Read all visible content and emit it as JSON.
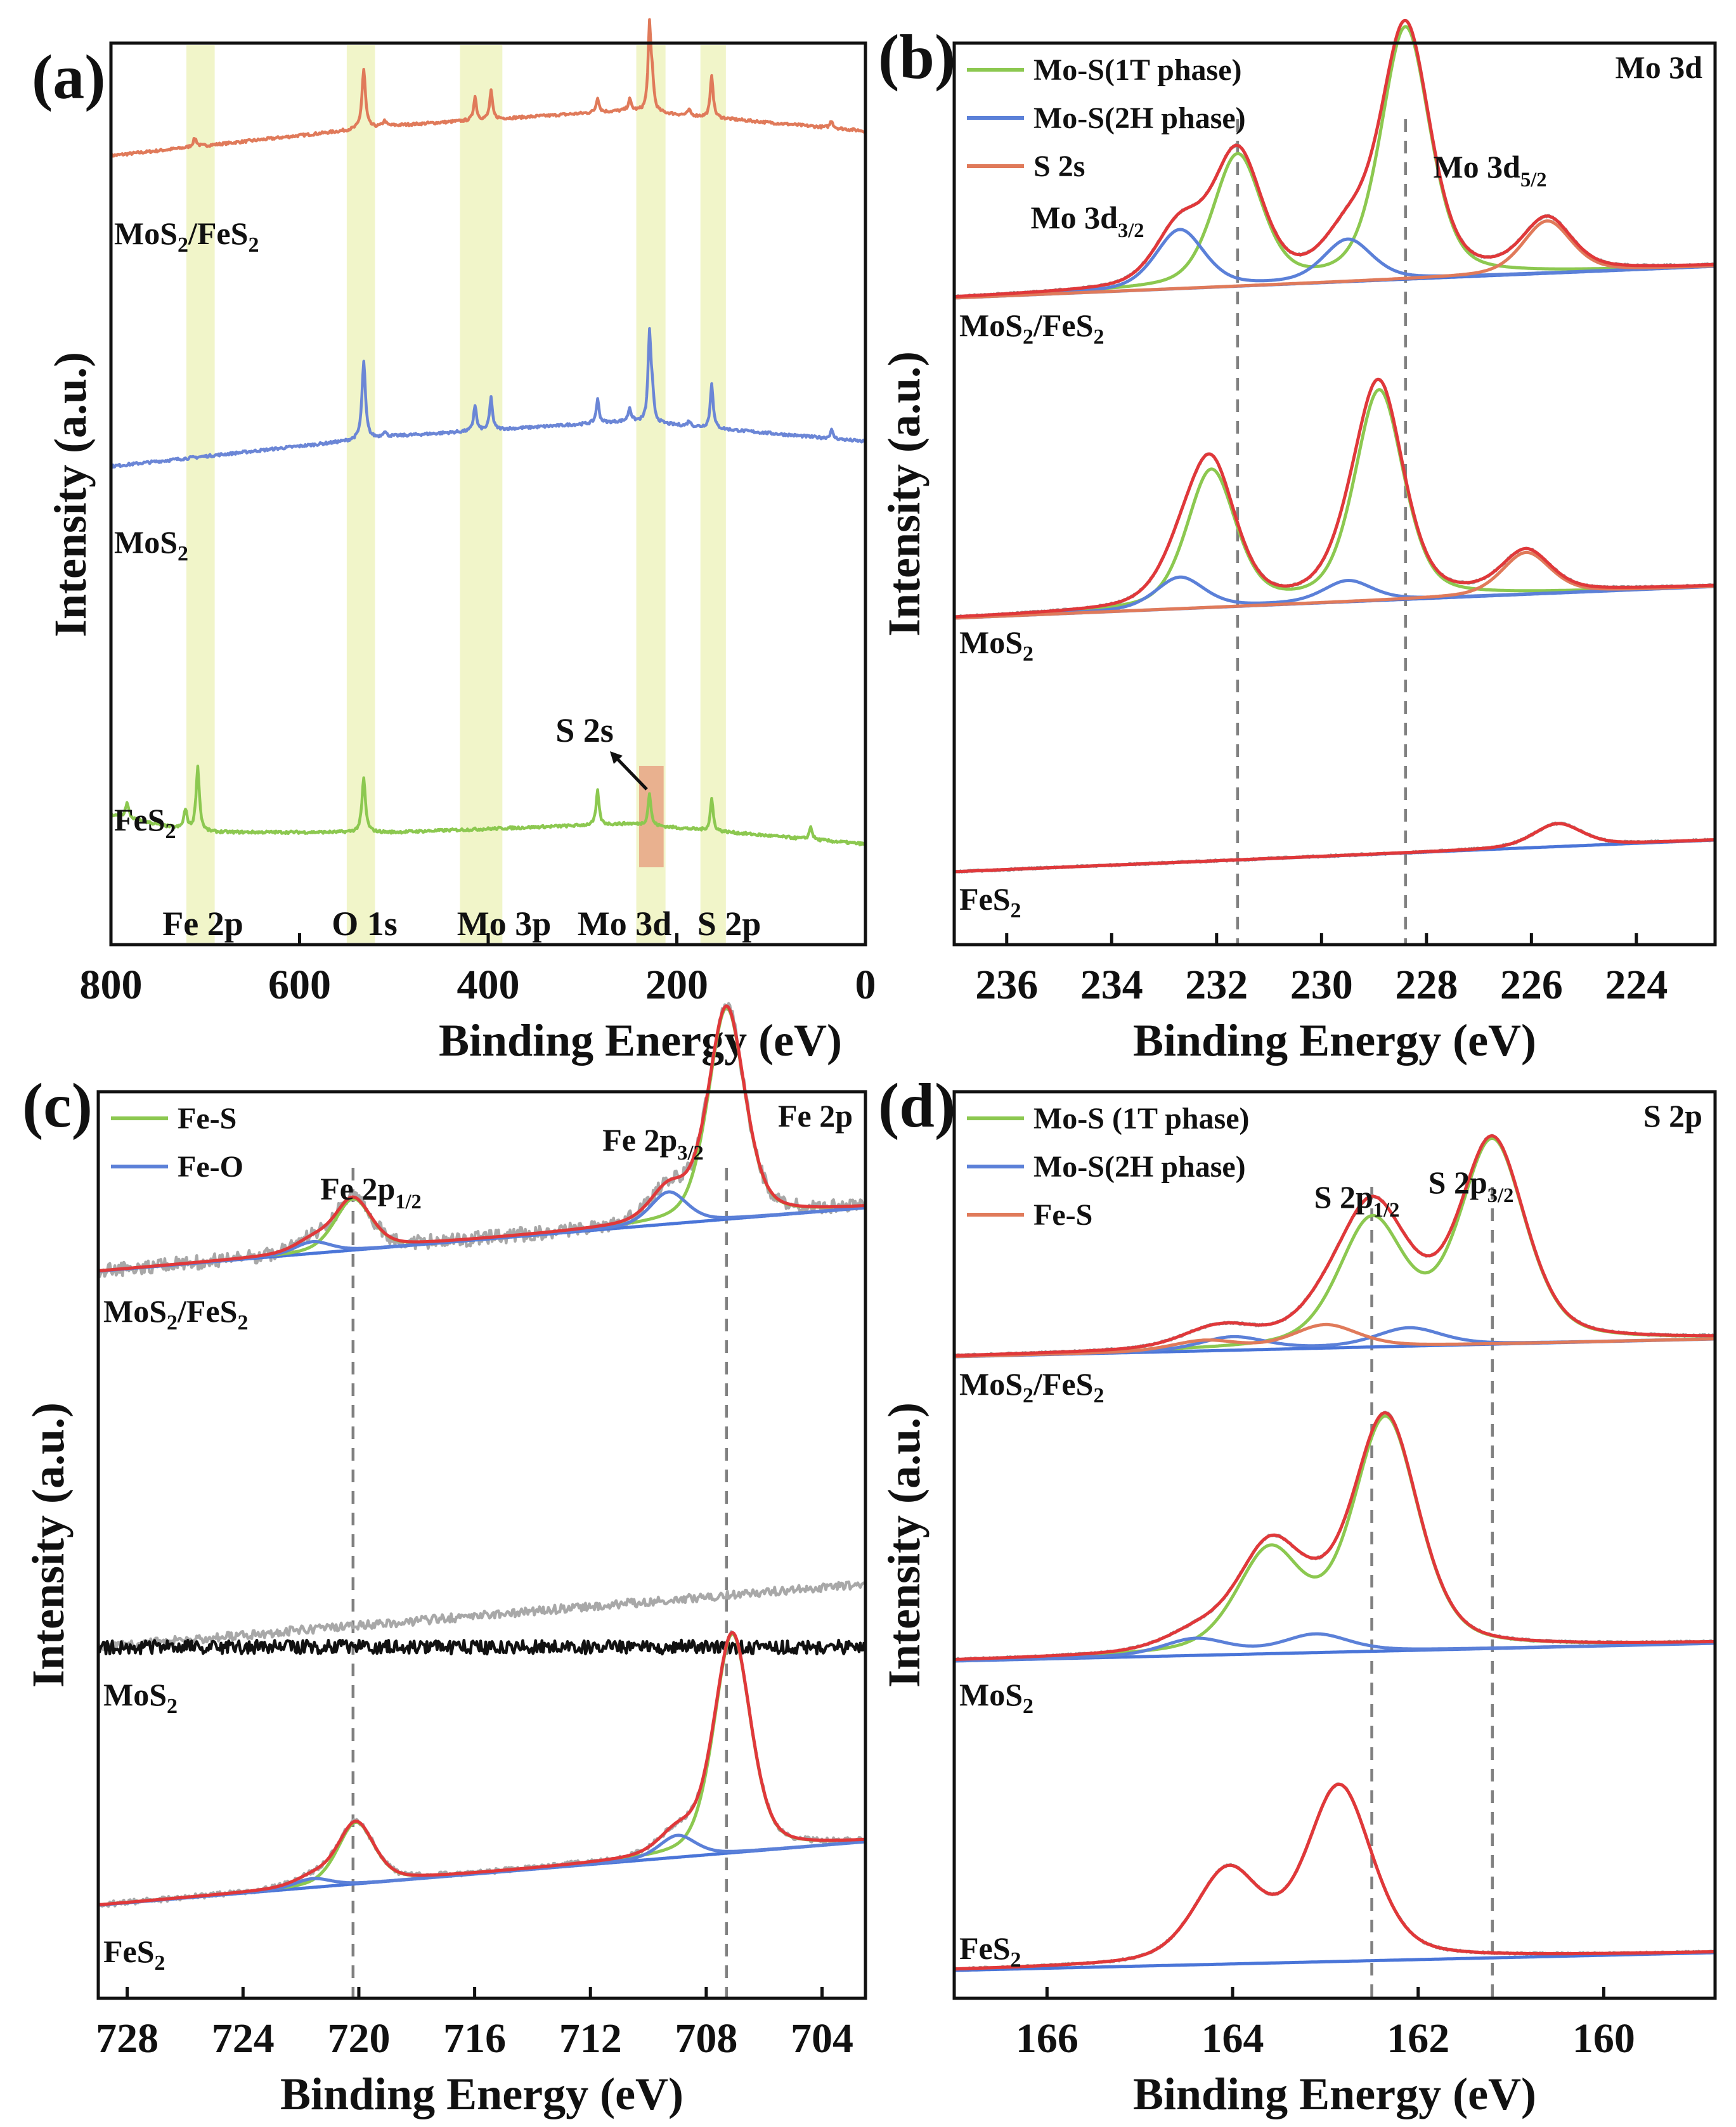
{
  "figure": {
    "description_free": true
  },
  "chart_data": [
    {
      "panel": "(a)",
      "type": "line",
      "title": "",
      "xlabel": "Binding Energy (eV)",
      "ylabel": "Intensity (a.u.)",
      "xlim": [
        800,
        0
      ],
      "x_ticks": [
        "800",
        "600",
        "400",
        "200",
        "0"
      ],
      "highlight_regions": [
        {
          "label": "Fe 2p",
          "range": [
            720,
            690
          ],
          "color": "#f1f5c9"
        },
        {
          "label": "O 1s",
          "range": [
            550,
            520
          ],
          "color": "#f1f5c9"
        },
        {
          "label": "Mo 3p",
          "range": [
            430,
            385
          ],
          "color": "#f1f5c9"
        },
        {
          "label": "Mo 3d",
          "range": [
            243,
            212
          ],
          "color": "#f1f5c9"
        },
        {
          "label": "S 2p",
          "range": [
            175,
            148
          ],
          "color": "#f1f5c9"
        }
      ],
      "annotation": {
        "text": "S 2s",
        "x": 226,
        "box_color": "#e8a080"
      },
      "series": [
        {
          "name": "MoS2/FeS2",
          "color": "#e07a5a",
          "offset": 2.0,
          "baseline": {
            "at_800": 0.32,
            "at_500": 0.6,
            "at_250": 0.74,
            "at_0": 0.55
          },
          "peaks": [
            [
              711,
              0.08
            ],
            [
              532,
              0.55
            ],
            [
              510,
              0.05
            ],
            [
              414,
              0.22
            ],
            [
              397,
              0.26
            ],
            [
              284,
              0.14
            ],
            [
              250,
              0.1
            ],
            [
              229,
              0.78
            ],
            [
              226,
              0.25
            ],
            [
              187,
              0.05
            ],
            [
              163,
              0.4
            ],
            [
              36,
              0.07
            ]
          ]
        },
        {
          "name": "MoS2",
          "color": "#6b86d6",
          "offset": 1.0,
          "baseline": {
            "at_800": 0.32,
            "at_500": 0.6,
            "at_250": 0.74,
            "at_0": 0.55
          },
          "peaks": [
            [
              532,
              0.72
            ],
            [
              510,
              0.05
            ],
            [
              414,
              0.24
            ],
            [
              397,
              0.3
            ],
            [
              284,
              0.22
            ],
            [
              250,
              0.12
            ],
            [
              229,
              0.82
            ],
            [
              226,
              0.22
            ],
            [
              187,
              0.05
            ],
            [
              163,
              0.42
            ],
            [
              36,
              0.08
            ]
          ]
        },
        {
          "name": "FeS2",
          "color": "#8cc850",
          "offset": 0.0,
          "baseline": {
            "at_800": 0.32,
            "at_710": 0.16,
            "at_500": 0.16,
            "at_250": 0.24,
            "at_0": 0.05
          },
          "peaks": [
            [
              783,
              0.14
            ],
            [
              721,
              0.18
            ],
            [
              708,
              0.6
            ],
            [
              532,
              0.5
            ],
            [
              284,
              0.32
            ],
            [
              229,
              0.3
            ],
            [
              163,
              0.3
            ],
            [
              58,
              0.12
            ]
          ]
        }
      ],
      "sample_labels": [
        "MoS2/FeS2",
        "MoS2",
        "FeS2"
      ]
    },
    {
      "panel": "(b)",
      "type": "line",
      "title": "",
      "corner_label": "Mo 3d",
      "xlabel": "Binding Energy (eV)",
      "ylabel": "Intensity (a.u.)",
      "xlim": [
        237,
        222.5
      ],
      "x_ticks": [
        "236",
        "234",
        "232",
        "230",
        "228",
        "226",
        "224"
      ],
      "dashed_lines": [
        231.6,
        228.4
      ],
      "legend": [
        {
          "label": "Mo-S(1T phase)",
          "color": "#8cc850"
        },
        {
          "label": "Mo-S(2H phase)",
          "color": "#5b80d8"
        },
        {
          "label": "S 2s",
          "color": "#e07a5a"
        }
      ],
      "peak_labels": [
        "Mo 3d3/2",
        "Mo 3d5/2"
      ],
      "series": [
        {
          "name": "MoS2/FeS2",
          "components": {
            "1T": [
              [
                231.6,
                0.62
              ],
              [
                228.4,
                1.2
              ]
            ],
            "2H": [
              [
                232.7,
                0.28
              ],
              [
                229.5,
                0.2
              ]
            ],
            "S2s": [
              [
                225.7,
                0.25
              ]
            ]
          }
        },
        {
          "name": "MoS2",
          "components": {
            "1T": [
              [
                232.1,
                0.65
              ],
              [
                228.9,
                1.0
              ]
            ],
            "2H": [
              [
                232.7,
                0.15
              ],
              [
                229.5,
                0.1
              ]
            ],
            "S2s": [
              [
                226.1,
                0.2
              ]
            ]
          }
        },
        {
          "name": "FeS2",
          "components": {
            "S2s": [
              [
                225.5,
                0.11
              ]
            ]
          }
        }
      ],
      "sample_labels": [
        "MoS2/FeS2",
        "MoS2",
        "FeS2"
      ]
    },
    {
      "panel": "(c)",
      "type": "line",
      "title": "",
      "corner_label": "Fe 2p",
      "xlabel": "Binding Energy (eV)",
      "ylabel": "Intensity (a.u.)",
      "xlim": [
        729,
        702.5
      ],
      "x_ticks": [
        "728",
        "724",
        "720",
        "716",
        "712",
        "708",
        "704"
      ],
      "dashed_lines": [
        720.2,
        707.3
      ],
      "legend": [
        {
          "label": "Fe-S",
          "color": "#8cc850"
        },
        {
          "label": "Fe-O",
          "color": "#5b80d8"
        }
      ],
      "peak_labels": [
        "Fe 2p1/2",
        "Fe 2p3/2"
      ],
      "series": [
        {
          "name": "MoS2/FeS2",
          "components": {
            "Fe-S": [
              [
                720.2,
                0.35
              ],
              [
                707.3,
                1.45
              ]
            ],
            "Fe-O": [
              [
                721.6,
                0.08
              ],
              [
                709.3,
                0.22
              ]
            ]
          }
        },
        {
          "name": "MoS2",
          "components": {}
        },
        {
          "name": "FeS2",
          "components": {
            "Fe-S": [
              [
                720.1,
                0.42
              ],
              [
                707.1,
                1.5
              ]
            ],
            "Fe-O": [
              [
                721.6,
                0.06
              ],
              [
                709.0,
                0.15
              ]
            ]
          }
        }
      ],
      "sample_labels": [
        "MoS2/FeS2",
        "MoS2",
        "FeS2"
      ]
    },
    {
      "panel": "(d)",
      "type": "line",
      "title": "",
      "corner_label": "S 2p",
      "xlabel": "Binding Energy (eV)",
      "ylabel": "Intensity (a.u.)",
      "xlim": [
        167,
        158.8
      ],
      "x_ticks": [
        "166",
        "164",
        "162",
        "160"
      ],
      "dashed_lines": [
        162.5,
        161.2
      ],
      "legend": [
        {
          "label": "Mo-S (1T phase)",
          "color": "#8cc850"
        },
        {
          "label": "Mo-S(2H phase)",
          "color": "#5b80d8"
        },
        {
          "label": "Fe-S",
          "color": "#e07a5a"
        }
      ],
      "peak_labels": [
        "S 2p1/2",
        "S 2p3/2"
      ],
      "series": [
        {
          "name": "MoS2/FeS2",
          "components": {
            "1T": [
              [
                162.5,
                0.75
              ],
              [
                161.2,
                1.22
              ]
            ],
            "2H": [
              [
                164.0,
                0.08
              ],
              [
                162.1,
                0.11
              ]
            ],
            "Fe-S": [
              [
                164.3,
                0.06
              ],
              [
                163.0,
                0.14
              ]
            ]
          }
        },
        {
          "name": "MoS2",
          "components": {
            "1T": [
              [
                163.6,
                0.6
              ],
              [
                162.35,
                1.4
              ]
            ],
            "2H": [
              [
                164.4,
                0.1
              ],
              [
                163.1,
                0.11
              ]
            ]
          }
        },
        {
          "name": "FeS2",
          "components": {
            "Fe-S": [
              [
                164.05,
                0.55
              ],
              [
                162.85,
                1.05
              ]
            ]
          }
        }
      ],
      "sample_labels": [
        "MoS2/FeS2",
        "MoS2",
        "FeS2"
      ]
    }
  ]
}
